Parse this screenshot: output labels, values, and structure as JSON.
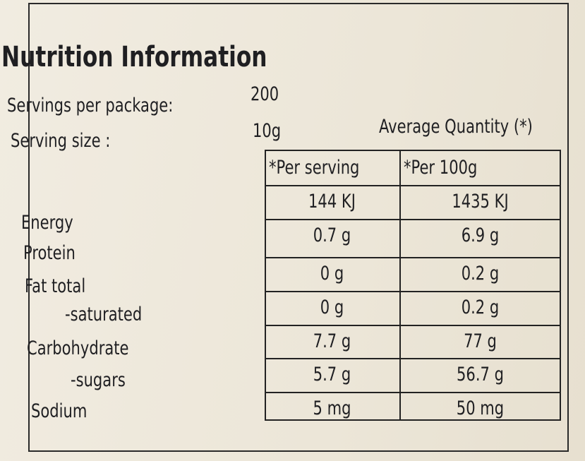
{
  "title": "Nutrition Information",
  "servings": [
    {
      "label": "Servings per package:",
      "value": "200"
    },
    {
      "label": "Serving size :",
      "value": "10g"
    }
  ],
  "table": {
    "caption": "Average Quantity (*)",
    "columns": [
      "*Per serving",
      "*Per 100g"
    ],
    "rows": [
      {
        "label": "Energy",
        "values": [
          "144 KJ",
          "1435 KJ"
        ]
      },
      {
        "label": "Protein",
        "values": [
          "0.7 g",
          "6.9 g"
        ]
      },
      {
        "label": "Fat total",
        "values": [
          "0 g",
          "0.2 g"
        ]
      },
      {
        "label": "-saturated",
        "values": [
          "0 g",
          "0.2 g"
        ]
      },
      {
        "label": "Carbohydrate",
        "values": [
          "7.7 g",
          "77 g"
        ]
      },
      {
        "label": "-sugars",
        "values": [
          "5.7 g",
          "56.7 g"
        ]
      },
      {
        "label": "Sodium",
        "values": [
          "5 mg",
          "50 mg"
        ]
      }
    ]
  }
}
